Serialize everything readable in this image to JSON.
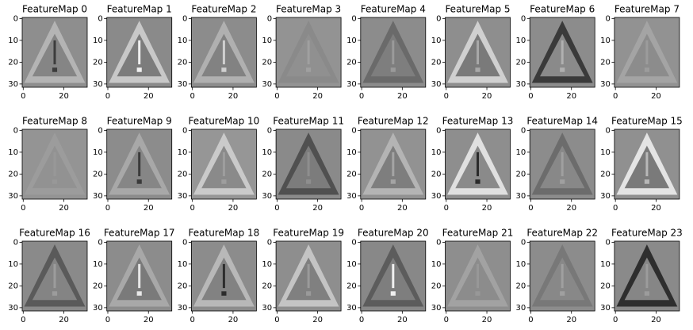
{
  "chart_data": [
    {
      "type": "image",
      "title": "FeatureMap 0",
      "xlim": [
        -0.5,
        31.5
      ],
      "ylim": [
        31.5,
        -0.5
      ],
      "xticks": [
        0,
        20
      ],
      "yticks": [
        0,
        10,
        20,
        30
      ],
      "colors": {
        "background": "#8e8e8e",
        "edge": "#b4b4b4",
        "inner": "#858585",
        "mark": "#3c3c3c"
      }
    },
    {
      "type": "image",
      "title": "FeatureMap 1",
      "xlim": [
        -0.5,
        31.5
      ],
      "ylim": [
        31.5,
        -0.5
      ],
      "xticks": [
        0,
        20
      ],
      "yticks": [
        0,
        10,
        20,
        30
      ],
      "colors": {
        "background": "#8a8a8a",
        "edge": "#c8c8c8",
        "inner": "#7c7c7c",
        "mark": "#f0f0f0"
      }
    },
    {
      "type": "image",
      "title": "FeatureMap 2",
      "xlim": [
        -0.5,
        31.5
      ],
      "ylim": [
        31.5,
        -0.5
      ],
      "xticks": [
        0,
        20
      ],
      "yticks": [
        0,
        10,
        20,
        30
      ],
      "colors": {
        "background": "#8c8c8c",
        "edge": "#b0b0b0",
        "inner": "#828282",
        "mark": "#d0d0d0"
      }
    },
    {
      "type": "image",
      "title": "FeatureMap 3",
      "xlim": [
        -0.5,
        31.5
      ],
      "ylim": [
        31.5,
        -0.5
      ],
      "xticks": [
        0,
        20
      ],
      "yticks": [
        0,
        10,
        20,
        30
      ],
      "colors": {
        "background": "#939393",
        "edge": "#8a8a8a",
        "inner": "#909090",
        "mark": "#a0a0a0"
      }
    },
    {
      "type": "image",
      "title": "FeatureMap 4",
      "xlim": [
        -0.5,
        31.5
      ],
      "ylim": [
        31.5,
        -0.5
      ],
      "xticks": [
        0,
        20
      ],
      "yticks": [
        0,
        10,
        20,
        30
      ],
      "colors": {
        "background": "#8c8c8c",
        "edge": "#6a6a6a",
        "inner": "#7e7e7e",
        "mark": "#9a9a9a"
      }
    },
    {
      "type": "image",
      "title": "FeatureMap 5",
      "xlim": [
        -0.5,
        31.5
      ],
      "ylim": [
        31.5,
        -0.5
      ],
      "xticks": [
        0,
        20
      ],
      "yticks": [
        0,
        10,
        20,
        30
      ],
      "colors": {
        "background": "#8e8e8e",
        "edge": "#d0d0d0",
        "inner": "#7a7a7a",
        "mark": "#a8a8a8"
      }
    },
    {
      "type": "image",
      "title": "FeatureMap 6",
      "xlim": [
        -0.5,
        31.5
      ],
      "ylim": [
        31.5,
        -0.5
      ],
      "xticks": [
        0,
        20
      ],
      "yticks": [
        0,
        10,
        20,
        30
      ],
      "colors": {
        "background": "#8c8c8c",
        "edge": "#3a3a3a",
        "inner": "#8a8a8a",
        "mark": "#b0b0b0"
      }
    },
    {
      "type": "image",
      "title": "FeatureMap 7",
      "xlim": [
        -0.5,
        31.5
      ],
      "ylim": [
        31.5,
        -0.5
      ],
      "xticks": [
        0,
        20
      ],
      "yticks": [
        0,
        10,
        20,
        30
      ],
      "colors": {
        "background": "#929292",
        "edge": "#a4a4a4",
        "inner": "#8c8c8c",
        "mark": "#9c9c9c"
      }
    },
    {
      "type": "image",
      "title": "FeatureMap 8",
      "xlim": [
        -0.5,
        31.5
      ],
      "ylim": [
        31.5,
        -0.5
      ],
      "xticks": [
        0,
        20
      ],
      "yticks": [
        0,
        10,
        20,
        30
      ],
      "colors": {
        "background": "#949494",
        "edge": "#9c9c9c",
        "inner": "#929292",
        "mark": "#989898"
      }
    },
    {
      "type": "image",
      "title": "FeatureMap 9",
      "xlim": [
        -0.5,
        31.5
      ],
      "ylim": [
        31.5,
        -0.5
      ],
      "xticks": [
        0,
        20
      ],
      "yticks": [
        0,
        10,
        20,
        30
      ],
      "colors": {
        "background": "#8c8c8c",
        "edge": "#a8a8a8",
        "inner": "#868686",
        "mark": "#3a3a3a"
      }
    },
    {
      "type": "image",
      "title": "FeatureMap 10",
      "xlim": [
        -0.5,
        31.5
      ],
      "ylim": [
        31.5,
        -0.5
      ],
      "xticks": [
        0,
        20
      ],
      "yticks": [
        0,
        10,
        20,
        30
      ],
      "colors": {
        "background": "#969696",
        "edge": "#cacaca",
        "inner": "#8a8a8a",
        "mark": "#9e9e9e"
      }
    },
    {
      "type": "image",
      "title": "FeatureMap 11",
      "xlim": [
        -0.5,
        31.5
      ],
      "ylim": [
        31.5,
        -0.5
      ],
      "xticks": [
        0,
        20
      ],
      "yticks": [
        0,
        10,
        20,
        30
      ],
      "colors": {
        "background": "#8a8a8a",
        "edge": "#505050",
        "inner": "#7c7c7c",
        "mark": "#8e8e8e"
      }
    },
    {
      "type": "image",
      "title": "FeatureMap 12",
      "xlim": [
        -0.5,
        31.5
      ],
      "ylim": [
        31.5,
        -0.5
      ],
      "xticks": [
        0,
        20
      ],
      "yticks": [
        0,
        10,
        20,
        30
      ],
      "colors": {
        "background": "#929292",
        "edge": "#b4b4b4",
        "inner": "#7e7e7e",
        "mark": "#a4a4a4"
      }
    },
    {
      "type": "image",
      "title": "FeatureMap 13",
      "xlim": [
        -0.5,
        31.5
      ],
      "ylim": [
        31.5,
        -0.5
      ],
      "xticks": [
        0,
        20
      ],
      "yticks": [
        0,
        10,
        20,
        30
      ],
      "colors": {
        "background": "#8e8e8e",
        "edge": "#e0e0e0",
        "inner": "#8a8a8a",
        "mark": "#2a2a2a"
      }
    },
    {
      "type": "image",
      "title": "FeatureMap 14",
      "xlim": [
        -0.5,
        31.5
      ],
      "ylim": [
        31.5,
        -0.5
      ],
      "xticks": [
        0,
        20
      ],
      "yticks": [
        0,
        10,
        20,
        30
      ],
      "colors": {
        "background": "#8c8c8c",
        "edge": "#6c6c6c",
        "inner": "#888888",
        "mark": "#a0a0a0"
      }
    },
    {
      "type": "image",
      "title": "FeatureMap 15",
      "xlim": [
        -0.5,
        31.5
      ],
      "ylim": [
        31.5,
        -0.5
      ],
      "xticks": [
        0,
        20
      ],
      "yticks": [
        0,
        10,
        20,
        30
      ],
      "colors": {
        "background": "#909090",
        "edge": "#e4e4e4",
        "inner": "#7a7a7a",
        "mark": "#b8b8b8"
      }
    },
    {
      "type": "image",
      "title": "FeatureMap 16",
      "xlim": [
        -0.5,
        31.5
      ],
      "ylim": [
        31.5,
        -0.5
      ],
      "xticks": [
        0,
        20
      ],
      "yticks": [
        0,
        10,
        20,
        30
      ],
      "colors": {
        "background": "#8a8a8a",
        "edge": "#5a5a5a",
        "inner": "#848484",
        "mark": "#9c9c9c"
      }
    },
    {
      "type": "image",
      "title": "FeatureMap 17",
      "xlim": [
        -0.5,
        31.5
      ],
      "ylim": [
        31.5,
        -0.5
      ],
      "xticks": [
        0,
        20
      ],
      "yticks": [
        0,
        10,
        20,
        30
      ],
      "colors": {
        "background": "#8c8c8c",
        "edge": "#a8a8a8",
        "inner": "#7a7a7a",
        "mark": "#e8e8e8"
      }
    },
    {
      "type": "image",
      "title": "FeatureMap 18",
      "xlim": [
        -0.5,
        31.5
      ],
      "ylim": [
        31.5,
        -0.5
      ],
      "xticks": [
        0,
        20
      ],
      "yticks": [
        0,
        10,
        20,
        30
      ],
      "colors": {
        "background": "#8c8c8c",
        "edge": "#b8b8b8",
        "inner": "#828282",
        "mark": "#2c2c2c"
      }
    },
    {
      "type": "image",
      "title": "FeatureMap 19",
      "xlim": [
        -0.5,
        31.5
      ],
      "ylim": [
        31.5,
        -0.5
      ],
      "xticks": [
        0,
        20
      ],
      "yticks": [
        0,
        10,
        20,
        30
      ],
      "colors": {
        "background": "#8e8e8e",
        "edge": "#c4c4c4",
        "inner": "#808080",
        "mark": "#9a9a9a"
      }
    },
    {
      "type": "image",
      "title": "FeatureMap 20",
      "xlim": [
        -0.5,
        31.5
      ],
      "ylim": [
        31.5,
        -0.5
      ],
      "xticks": [
        0,
        20
      ],
      "yticks": [
        0,
        10,
        20,
        30
      ],
      "colors": {
        "background": "#888888",
        "edge": "#5c5c5c",
        "inner": "#7e7e7e",
        "mark": "#f0f0f0"
      }
    },
    {
      "type": "image",
      "title": "FeatureMap 21",
      "xlim": [
        -0.5,
        31.5
      ],
      "ylim": [
        31.5,
        -0.5
      ],
      "xticks": [
        0,
        20
      ],
      "yticks": [
        0,
        10,
        20,
        30
      ],
      "colors": {
        "background": "#8e8e8e",
        "edge": "#a2a2a2",
        "inner": "#8c8c8c",
        "mark": "#989898"
      }
    },
    {
      "type": "image",
      "title": "FeatureMap 22",
      "xlim": [
        -0.5,
        31.5
      ],
      "ylim": [
        31.5,
        -0.5
      ],
      "xticks": [
        0,
        20
      ],
      "yticks": [
        0,
        10,
        20,
        30
      ],
      "colors": {
        "background": "#8c8c8c",
        "edge": "#787878",
        "inner": "#888888",
        "mark": "#a0a0a0"
      }
    },
    {
      "type": "image",
      "title": "FeatureMap 23",
      "xlim": [
        -0.5,
        31.5
      ],
      "ylim": [
        31.5,
        -0.5
      ],
      "xticks": [
        0,
        20
      ],
      "yticks": [
        0,
        10,
        20,
        30
      ],
      "colors": {
        "background": "#8a8a8a",
        "edge": "#2e2e2e",
        "inner": "#868686",
        "mark": "#9c9c9c"
      }
    }
  ]
}
